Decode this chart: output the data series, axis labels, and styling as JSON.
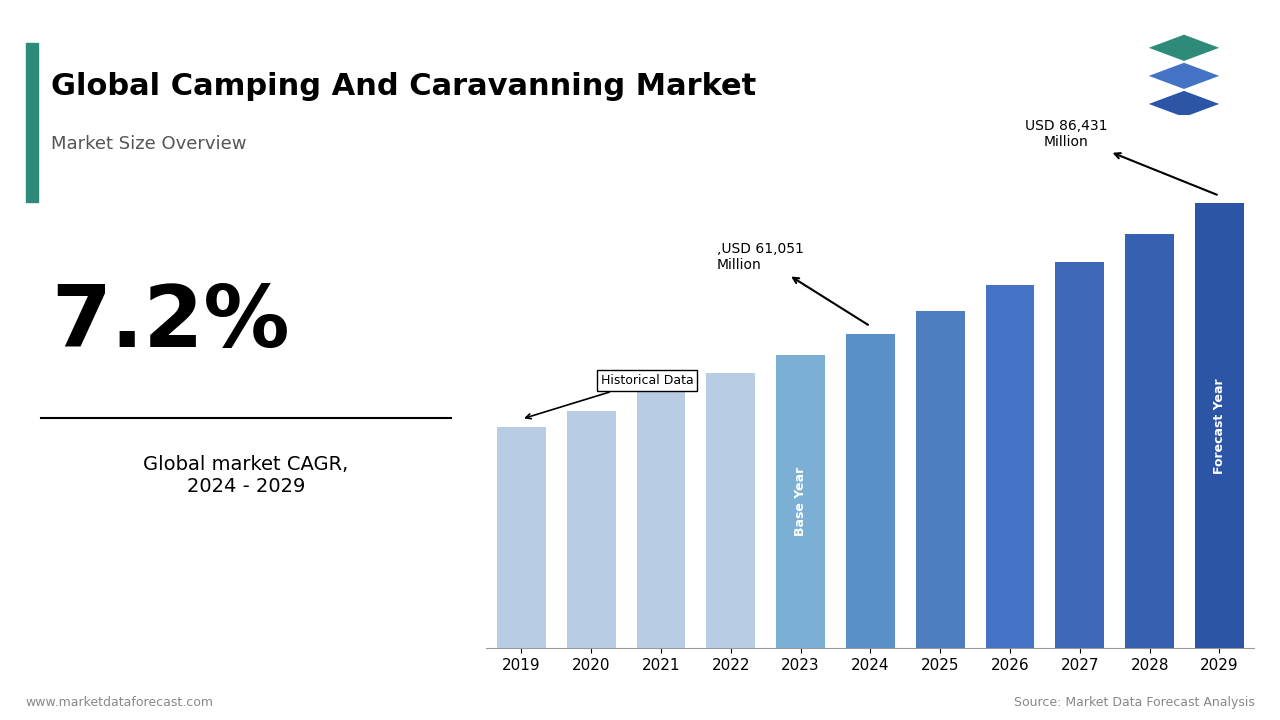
{
  "title": "Global Camping And Caravanning Market",
  "subtitle": "Market Size Overview",
  "years": [
    2019,
    2020,
    2021,
    2022,
    2023,
    2024,
    2025,
    2026,
    2027,
    2028,
    2029
  ],
  "values": [
    43000,
    46000,
    50500,
    53500,
    57000,
    61051,
    65500,
    70500,
    75000,
    80500,
    86431
  ],
  "historical_color": "#b8cce4",
  "forecast_colors": {
    "2023": "#7bafd4",
    "2024": "#5b8fc7",
    "2025": "#4d7fc0",
    "2026": "#4472c4",
    "2027": "#3d68b8",
    "2028": "#3660b0",
    "2029": "#2d55a5"
  },
  "cagr_text": "7.2%",
  "cagr_label": "Global market CAGR,\n2024 - 2029",
  "annotation_2024": ",USD 61,051\nMillion",
  "annotation_2029": "USD 86,431\nMillion",
  "historical_label": "Historical Data",
  "base_year_label": "Base Year",
  "forecast_year_label": "Forecast Year",
  "footer_left": "www.marketdataforecast.com",
  "footer_right": "Source: Market Data Forecast Analysis",
  "background_color": "#ffffff",
  "title_bar_color": "#2e8b7a"
}
